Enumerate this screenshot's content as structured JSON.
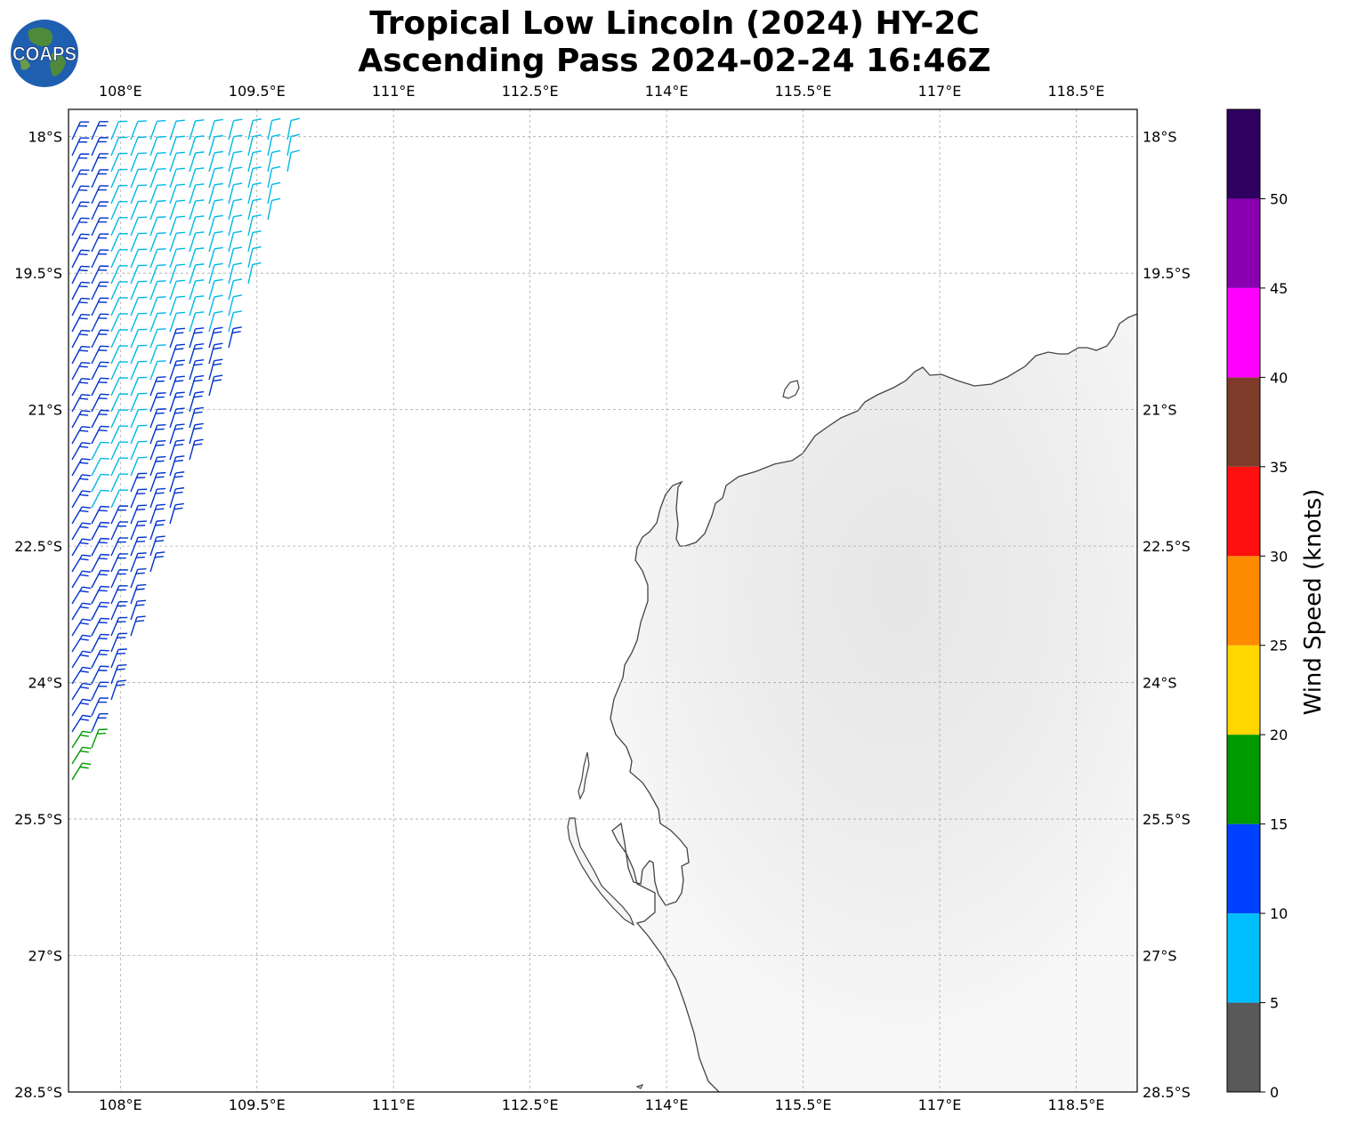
{
  "title": {
    "line1": "Tropical Low Lincoln (2024) HY-2C",
    "line2": "Ascending Pass 2024-02-24 16:46Z"
  },
  "logo": {
    "text": "COAPS",
    "icon": "globe-logo-icon"
  },
  "map": {
    "lon_ticks": [
      {
        "value": 108,
        "label": "108°E"
      },
      {
        "value": 109.5,
        "label": "109.5°E"
      },
      {
        "value": 111,
        "label": "111°E"
      },
      {
        "value": 112.5,
        "label": "112.5°E"
      },
      {
        "value": 114,
        "label": "114°E"
      },
      {
        "value": 115.5,
        "label": "115.5°E"
      },
      {
        "value": 117,
        "label": "117°E"
      },
      {
        "value": 118.5,
        "label": "118.5°E"
      }
    ],
    "lat_ticks": [
      {
        "value": -18,
        "label": "18°S"
      },
      {
        "value": -19.5,
        "label": "19.5°S"
      },
      {
        "value": -21,
        "label": "21°S"
      },
      {
        "value": -22.5,
        "label": "22.5°S"
      },
      {
        "value": -24,
        "label": "24°S"
      },
      {
        "value": -25.5,
        "label": "25.5°S"
      },
      {
        "value": -27,
        "label": "27°S"
      },
      {
        "value": -28.5,
        "label": "28.5°S"
      }
    ],
    "lon_range": [
      107.43,
      119.17
    ],
    "lat_range": [
      -28.5,
      -17.7
    ],
    "gridlines": true
  },
  "colorbar": {
    "label": "Wind Speed (knots)",
    "ticks": [
      "0",
      "5",
      "10",
      "15",
      "20",
      "25",
      "30",
      "35",
      "40",
      "45",
      "50"
    ],
    "colors": [
      "#595959",
      "#00bfff",
      "#0040ff",
      "#009900",
      "#ffd700",
      "#ff8c00",
      "#ff1010",
      "#7f3b2a",
      "#ff00ff",
      "#8a00b0",
      "#2e0060"
    ]
  }
}
